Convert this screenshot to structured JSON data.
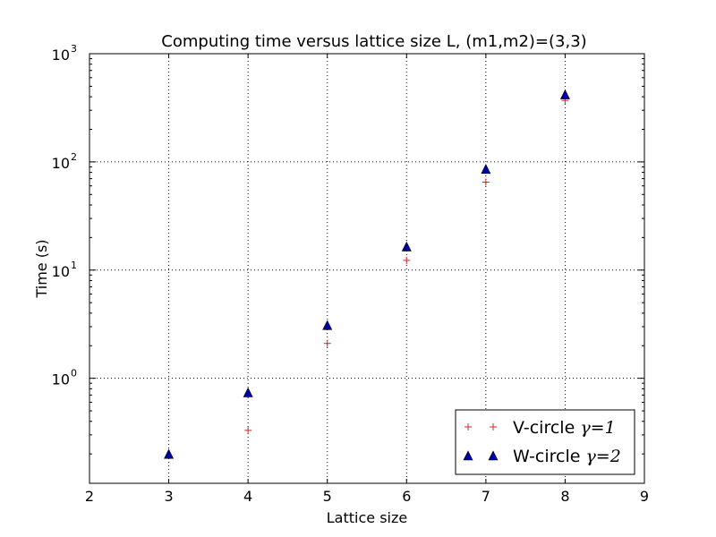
{
  "chart_data": {
    "type": "scatter",
    "title": "Computing time versus lattice size L, (m1,m2)=(3,3)",
    "xlabel": "Lattice size",
    "ylabel": "Time (s)",
    "xlim": [
      2,
      9
    ],
    "ylim": [
      0.107,
      1000
    ],
    "yscale": "log",
    "grid": true,
    "x_ticks": [
      "2",
      "3",
      "4",
      "5",
      "6",
      "7",
      "8",
      "9"
    ],
    "y_ticks": [
      {
        "value": 1,
        "base": "10",
        "exp": "0"
      },
      {
        "value": 10,
        "base": "10",
        "exp": "1"
      },
      {
        "value": 100,
        "base": "10",
        "exp": "2"
      },
      {
        "value": 1000,
        "base": "10",
        "exp": "3"
      }
    ],
    "legend_position": "lower-right",
    "series": [
      {
        "name": "V-circle γ=1",
        "legend_name": "V-circle ",
        "legend_math": "γ=1",
        "marker": "plus",
        "color": "#d62728",
        "x": [
          4,
          5,
          6,
          7,
          8
        ],
        "y": [
          0.33,
          2.1,
          12.3,
          65,
          370
        ]
      },
      {
        "name": "W-circle γ=2",
        "legend_name": "W-circle ",
        "legend_math": "γ=2",
        "marker": "triangle",
        "color": "#0000a8",
        "x": [
          3,
          4,
          5,
          6,
          7,
          8
        ],
        "y": [
          0.2,
          0.74,
          3.1,
          16.5,
          86,
          420
        ]
      }
    ]
  }
}
